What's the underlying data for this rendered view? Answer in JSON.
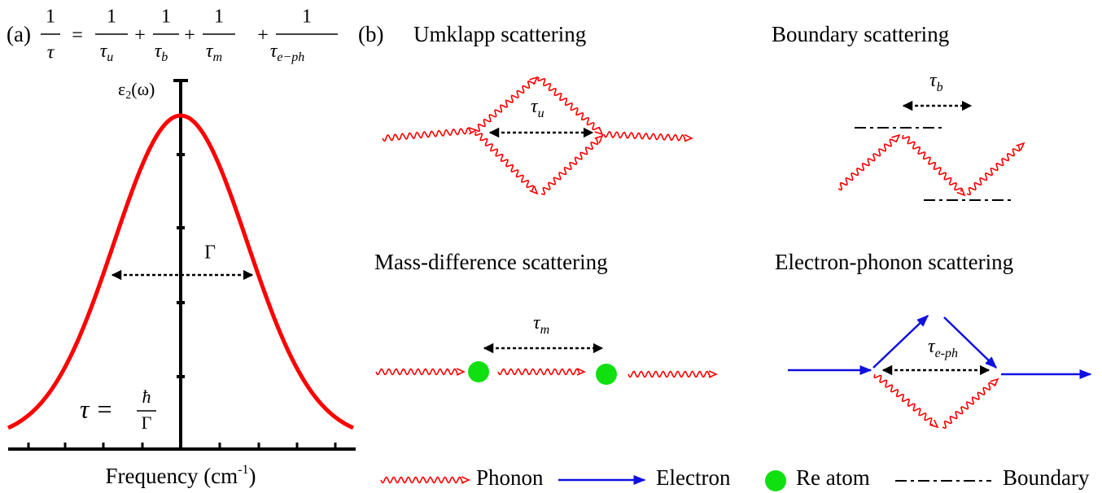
{
  "panel_a": {
    "label": "(a)",
    "equation": {
      "lhs": {
        "num": "1",
        "den": "τ"
      },
      "eq": "=",
      "terms": [
        {
          "op": "",
          "num": "1",
          "den": "τ",
          "sub": "u"
        },
        {
          "op": "+",
          "num": "1",
          "den": "τ",
          "sub": "b"
        },
        {
          "op": "+",
          "num": "1",
          "den": "τ",
          "sub": "m"
        },
        {
          "op": "+",
          "num": "1",
          "den": "τ",
          "sub": "e−ph"
        }
      ]
    },
    "y_label": {
      "main": "ε",
      "sub": "2",
      "rest": "(ω)"
    },
    "width_label": "Γ",
    "relation": {
      "lhs": "τ =",
      "num": "ħ",
      "den": "Γ"
    },
    "x_label": {
      "main": "Frequency (cm",
      "sup": "-1",
      "end": ")"
    }
  },
  "panel_b": {
    "label": "(b)",
    "processes": [
      {
        "title": "Umklapp scattering",
        "tau": "τ",
        "sub": "u"
      },
      {
        "title": "Boundary scattering",
        "tau": "τ",
        "sub": "b"
      },
      {
        "title": "Mass-difference scattering",
        "tau": "τ",
        "sub": "m"
      },
      {
        "title": "Electron-phonon scattering",
        "tau": "τ",
        "sub": "e-ph"
      }
    ]
  },
  "legend": [
    {
      "label": "Phonon"
    },
    {
      "label": "Electron"
    },
    {
      "label": "Re atom"
    },
    {
      "label": "Boundary"
    }
  ]
}
